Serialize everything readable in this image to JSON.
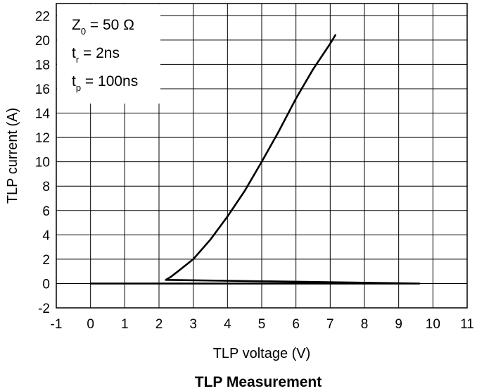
{
  "chart_data": {
    "type": "line",
    "title": "",
    "caption": "TLP Measurement",
    "xlabel": "TLP voltage (V)",
    "ylabel": "TLP current (A)",
    "xlim": [
      -1,
      11
    ],
    "ylim": [
      -2,
      23
    ],
    "xticks": [
      -1,
      0,
      1,
      2,
      3,
      4,
      5,
      6,
      7,
      8,
      9,
      10,
      11
    ],
    "yticks": [
      -2,
      0,
      2,
      4,
      6,
      8,
      10,
      12,
      14,
      16,
      18,
      20,
      22
    ],
    "grid": true,
    "legend_position": "top-left",
    "annotations": [
      {
        "main": "Z",
        "sub": "0",
        "rest": " = 50 Ω"
      },
      {
        "main": "t",
        "sub": "r",
        "rest": " = 2ns"
      },
      {
        "main": "t",
        "sub": "p",
        "rest": " = 100ns"
      }
    ],
    "series": [
      {
        "x": [
          0.0,
          3.0,
          6.0,
          9.6,
          2.2,
          2.35,
          2.6,
          3.0,
          3.5,
          4.0,
          4.5,
          5.0,
          5.5,
          6.0,
          6.5,
          7.0,
          7.15
        ],
        "y": [
          0.0,
          0.0,
          0.0,
          0.0,
          0.3,
          0.55,
          1.1,
          2.0,
          3.6,
          5.5,
          7.6,
          10.0,
          12.5,
          15.2,
          17.6,
          19.7,
          20.4
        ],
        "color": "#000000"
      }
    ]
  }
}
